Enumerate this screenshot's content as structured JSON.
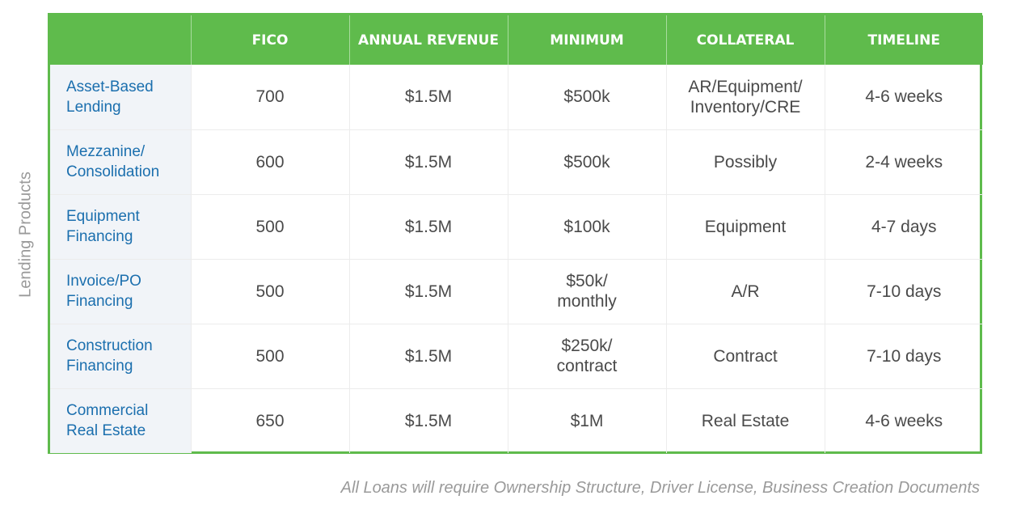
{
  "side_label": "Lending Products",
  "headers": [
    "",
    "FICO",
    "ANNUAL REVENUE",
    "MINIMUM",
    "COLLATERAL",
    "TIMELINE"
  ],
  "rows": [
    {
      "product_line1": "Asset-Based",
      "product_line2": "Lending",
      "fico": "700",
      "revenue": "$1.5M",
      "minimum_line1": "$500k",
      "minimum_line2": "",
      "collateral_line1": "AR/Equipment/",
      "collateral_line2": "Inventory/CRE",
      "timeline": "4-6 weeks"
    },
    {
      "product_line1": "Mezzanine/",
      "product_line2": "Consolidation",
      "fico": "600",
      "revenue": "$1.5M",
      "minimum_line1": "$500k",
      "minimum_line2": "",
      "collateral_line1": "Possibly",
      "collateral_line2": "",
      "timeline": "2-4 weeks"
    },
    {
      "product_line1": "Equipment",
      "product_line2": "Financing",
      "fico": "500",
      "revenue": "$1.5M",
      "minimum_line1": "$100k",
      "minimum_line2": "",
      "collateral_line1": "Equipment",
      "collateral_line2": "",
      "timeline": "4-7 days"
    },
    {
      "product_line1": "Invoice/PO",
      "product_line2": "Financing",
      "fico": "500",
      "revenue": "$1.5M",
      "minimum_line1": "$50k/",
      "minimum_line2": "monthly",
      "collateral_line1": "A/R",
      "collateral_line2": "",
      "timeline": "7-10 days"
    },
    {
      "product_line1": "Construction",
      "product_line2": "Financing",
      "fico": "500",
      "revenue": "$1.5M",
      "minimum_line1": "$250k/",
      "minimum_line2": "contract",
      "collateral_line1": "Contract",
      "collateral_line2": "",
      "timeline": "7-10 days"
    },
    {
      "product_line1": "Commercial",
      "product_line2": "Real Estate",
      "fico": "650",
      "revenue": "$1.5M",
      "minimum_line1": "$1M",
      "minimum_line2": "",
      "collateral_line1": "Real Estate",
      "collateral_line2": "",
      "timeline": "4-6 weeks"
    }
  ],
  "footnote": "All Loans will require Ownership Structure, Driver License, Business Creation Documents",
  "colors": {
    "header_green": "#5fbb4c",
    "product_blue": "#1b6fae",
    "product_cell_bg": "#f1f4f8",
    "muted_gray": "#9a9a9a"
  }
}
